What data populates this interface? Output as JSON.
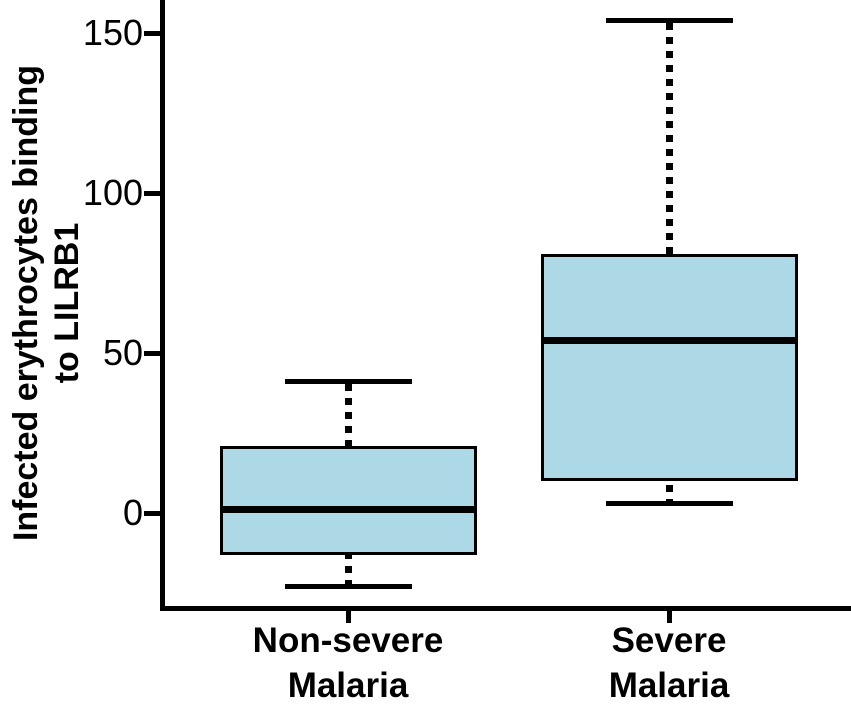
{
  "figure": {
    "background": "#ffffff",
    "text_color": "#000000"
  },
  "chart_data": {
    "type": "box",
    "title": "",
    "xlabel": "",
    "ylabel": "Infected erythrocytes binding to LILRB1",
    "ylabel_lines": [
      "Infected erythrocytes binding",
      "to LILRB1"
    ],
    "yticks": [
      "150",
      "100",
      "50",
      "0"
    ],
    "ytick_values": [
      150,
      100,
      50,
      0
    ],
    "ylim": [
      -40,
      170
    ],
    "grid": false,
    "legend": "none",
    "categories": [
      "Non-severe Malaria",
      "Severe Malaria"
    ],
    "category_label_lines": [
      [
        "Non-severe",
        "Malaria"
      ],
      [
        "Severe",
        "Malaria"
      ]
    ],
    "series": [
      {
        "name": "Non-severe Malaria",
        "whisker_low": -23,
        "q1": -13,
        "median": 1,
        "q3": 21,
        "whisker_high": 41
      },
      {
        "name": "Severe Malaria",
        "whisker_low": 3,
        "q1": 10,
        "median": 54,
        "q3": 81,
        "whisker_high": 154
      }
    ],
    "box_fill": "#ADD8E6",
    "box_stroke": "#000000",
    "median_color": "#000000",
    "whisker_style": "dotted"
  }
}
